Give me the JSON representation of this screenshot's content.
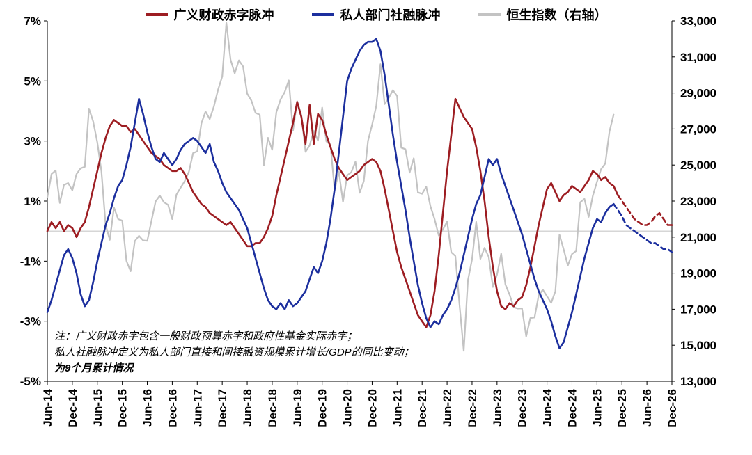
{
  "legend": [
    {
      "label": "广义财政赤字脉冲",
      "color": "#9D1D22"
    },
    {
      "label": "私人部门社融脉冲",
      "color": "#1C2F9E"
    },
    {
      "label": "恒生指数（右轴）",
      "color": "#C3C3C3"
    }
  ],
  "note": {
    "line1": "注：广义财政赤字包含一般财政预算赤字和政府性基金实际赤字；",
    "line2": "私人社融脉冲定义为私人部门直接和间接融资规模累计增长/GDP的同比变动；",
    "line3": "为9个月累计情况"
  },
  "chart_data": {
    "type": "line",
    "frequency": "monthly",
    "x_range": [
      "Jun-14",
      "Dec-26"
    ],
    "n_points": 151,
    "x_tick_step": 6,
    "x_tick_labels": [
      "Jun-14",
      "Dec-14",
      "Jun-15",
      "Dec-15",
      "Jun-16",
      "Dec-16",
      "Jun-17",
      "Dec-17",
      "Jun-18",
      "Dec-18",
      "Jun-19",
      "Dec-19",
      "Jun-20",
      "Dec-20",
      "Jun-21",
      "Dec-21",
      "Jun-22",
      "Dec-22",
      "Jun-23",
      "Dec-23",
      "Jun-24",
      "Dec-24",
      "Jun-25",
      "Dec-25",
      "Jun-26",
      "Dec-26"
    ],
    "left_axis": {
      "min": -5,
      "max": 7,
      "ticks": [
        7,
        5,
        3,
        1,
        -1,
        -3,
        -5
      ],
      "suffix": "%"
    },
    "right_axis": {
      "min": 13000,
      "max": 33000,
      "ticks": [
        33000,
        31000,
        29000,
        27000,
        25000,
        23000,
        21000,
        19000,
        17000,
        15000,
        13000
      ]
    },
    "zero_line": 0,
    "grid": "zero-line-only",
    "legend_position": "top-center",
    "series": [
      {
        "id": "fiscal-impulse",
        "name": "广义财政赤字脉冲",
        "axis": "left",
        "color": "#9D1D22",
        "width": 2.6,
        "solid_until": 137,
        "values": [
          0.0,
          0.3,
          0.1,
          0.3,
          0.0,
          0.2,
          0.1,
          -0.2,
          0.1,
          0.3,
          0.8,
          1.4,
          2.0,
          2.6,
          3.1,
          3.5,
          3.7,
          3.6,
          3.5,
          3.5,
          3.3,
          3.4,
          3.2,
          3.0,
          2.8,
          2.6,
          2.5,
          2.4,
          2.2,
          2.1,
          2.0,
          2.0,
          2.1,
          1.9,
          1.6,
          1.3,
          1.1,
          0.9,
          0.8,
          0.6,
          0.5,
          0.4,
          0.3,
          0.2,
          0.3,
          0.1,
          -0.1,
          -0.3,
          -0.5,
          -0.5,
          -0.4,
          -0.4,
          -0.2,
          0.1,
          0.5,
          1.2,
          1.8,
          2.4,
          3.0,
          3.6,
          4.3,
          3.8,
          2.9,
          4.2,
          2.9,
          3.9,
          3.7,
          3.2,
          2.8,
          2.4,
          2.1,
          1.9,
          1.7,
          1.8,
          1.9,
          2.0,
          2.2,
          2.3,
          2.4,
          2.3,
          2.0,
          1.4,
          0.7,
          0.0,
          -0.7,
          -1.2,
          -1.6,
          -2.0,
          -2.4,
          -2.8,
          -3.0,
          -3.2,
          -2.8,
          -2.0,
          -0.8,
          0.6,
          2.0,
          3.2,
          4.4,
          4.1,
          3.8,
          3.6,
          3.4,
          2.8,
          2.0,
          1.0,
          -0.2,
          -1.2,
          -2.0,
          -2.5,
          -2.6,
          -2.4,
          -2.5,
          -2.3,
          -2.2,
          -1.8,
          -1.2,
          -0.5,
          0.2,
          0.8,
          1.4,
          1.6,
          1.3,
          1.0,
          1.2,
          1.3,
          1.5,
          1.4,
          1.3,
          1.5,
          1.7,
          2.0,
          1.9,
          1.7,
          1.8,
          1.6,
          1.5,
          1.2,
          1.0,
          0.8,
          0.6,
          0.4,
          0.3,
          0.2,
          0.2,
          0.3,
          0.5,
          0.6,
          0.4,
          0.2,
          0.2
        ]
      },
      {
        "id": "credit-impulse",
        "name": "私人部门社融脉冲",
        "axis": "left",
        "color": "#1C2F9E",
        "width": 2.6,
        "solid_until": 136,
        "values": [
          -2.7,
          -2.3,
          -1.8,
          -1.3,
          -0.8,
          -0.6,
          -0.9,
          -1.4,
          -2.1,
          -2.5,
          -2.3,
          -1.7,
          -1.0,
          -0.4,
          0.2,
          0.6,
          1.1,
          1.5,
          1.7,
          2.2,
          2.8,
          3.6,
          4.4,
          3.9,
          3.3,
          2.8,
          2.4,
          2.3,
          2.6,
          2.4,
          2.2,
          2.4,
          2.7,
          2.9,
          3.0,
          3.1,
          3.0,
          2.8,
          2.6,
          2.9,
          2.3,
          2.0,
          1.6,
          1.3,
          1.1,
          0.9,
          0.7,
          0.4,
          0.1,
          -0.4,
          -0.9,
          -1.4,
          -1.9,
          -2.3,
          -2.5,
          -2.6,
          -2.4,
          -2.6,
          -2.3,
          -2.5,
          -2.4,
          -2.2,
          -2.0,
          -1.6,
          -1.2,
          -1.4,
          -1.0,
          -0.4,
          0.4,
          1.4,
          2.6,
          3.8,
          5.0,
          5.4,
          5.7,
          6.0,
          6.2,
          6.3,
          6.3,
          6.4,
          6.0,
          5.2,
          4.2,
          3.2,
          2.3,
          1.5,
          0.7,
          -0.2,
          -1.0,
          -1.8,
          -2.4,
          -2.9,
          -3.2,
          -3.0,
          -3.1,
          -2.8,
          -2.6,
          -2.3,
          -1.9,
          -1.4,
          -0.8,
          -0.2,
          0.4,
          0.9,
          1.2,
          1.8,
          2.4,
          2.2,
          2.4,
          1.9,
          1.5,
          1.1,
          0.7,
          0.3,
          -0.1,
          -0.6,
          -1.1,
          -1.6,
          -2.0,
          -2.3,
          -2.6,
          -3.0,
          -3.5,
          -3.9,
          -3.7,
          -3.2,
          -2.7,
          -2.1,
          -1.5,
          -0.9,
          -0.4,
          0.1,
          0.4,
          0.3,
          0.6,
          0.8,
          0.9,
          0.7,
          0.5,
          0.2,
          0.1,
          0.0,
          -0.1,
          -0.2,
          -0.3,
          -0.4,
          -0.4,
          -0.5,
          -0.6,
          -0.6,
          -0.7
        ]
      },
      {
        "id": "hang-seng-index",
        "name": "恒生指数（右轴）",
        "axis": "right",
        "color": "#C3C3C3",
        "width": 2.2,
        "solid_until": null,
        "values": [
          23200,
          24500,
          24700,
          22900,
          23900,
          24000,
          23600,
          24500,
          24820,
          24900,
          28130,
          27420,
          26250,
          24640,
          21670,
          20850,
          22640,
          22000,
          21910,
          19680,
          19110,
          20780,
          21070,
          20820,
          20790,
          21890,
          22980,
          23300,
          22940,
          22790,
          22000,
          23360,
          23740,
          24110,
          24620,
          25660,
          25760,
          27320,
          27970,
          27550,
          28250,
          29180,
          29920,
          32890,
          30850,
          30090,
          30810,
          30470,
          28960,
          28580,
          27890,
          27790,
          24980,
          26510,
          25850,
          27940,
          28630,
          29050,
          29700,
          26900,
          28540,
          27780,
          25730,
          26090,
          26910,
          26350,
          28190,
          26310,
          26130,
          23600,
          24640,
          22960,
          24430,
          24600,
          25180,
          23460,
          24110,
          26340,
          27230,
          28280,
          30600,
          28380,
          28730,
          29150,
          28830,
          25960,
          25880,
          24580,
          25380,
          23480,
          23400,
          23800,
          22710,
          22000,
          21090,
          21420,
          21860,
          20160,
          19950,
          17220,
          14690,
          18600,
          19780,
          21840,
          19790,
          20400,
          19900,
          18230,
          18920,
          20080,
          18380,
          17810,
          17110,
          17040,
          17050,
          15490,
          16510,
          16540,
          17760,
          18080,
          17720,
          17350,
          17990,
          21130,
          20320,
          19420,
          20060,
          20230,
          22940,
          23120,
          22120,
          23290,
          24070,
          24770,
          25080,
          26860,
          27800,
          null,
          null,
          null,
          null,
          null,
          null,
          null,
          null,
          null,
          null,
          null,
          null,
          null,
          null
        ]
      }
    ]
  }
}
